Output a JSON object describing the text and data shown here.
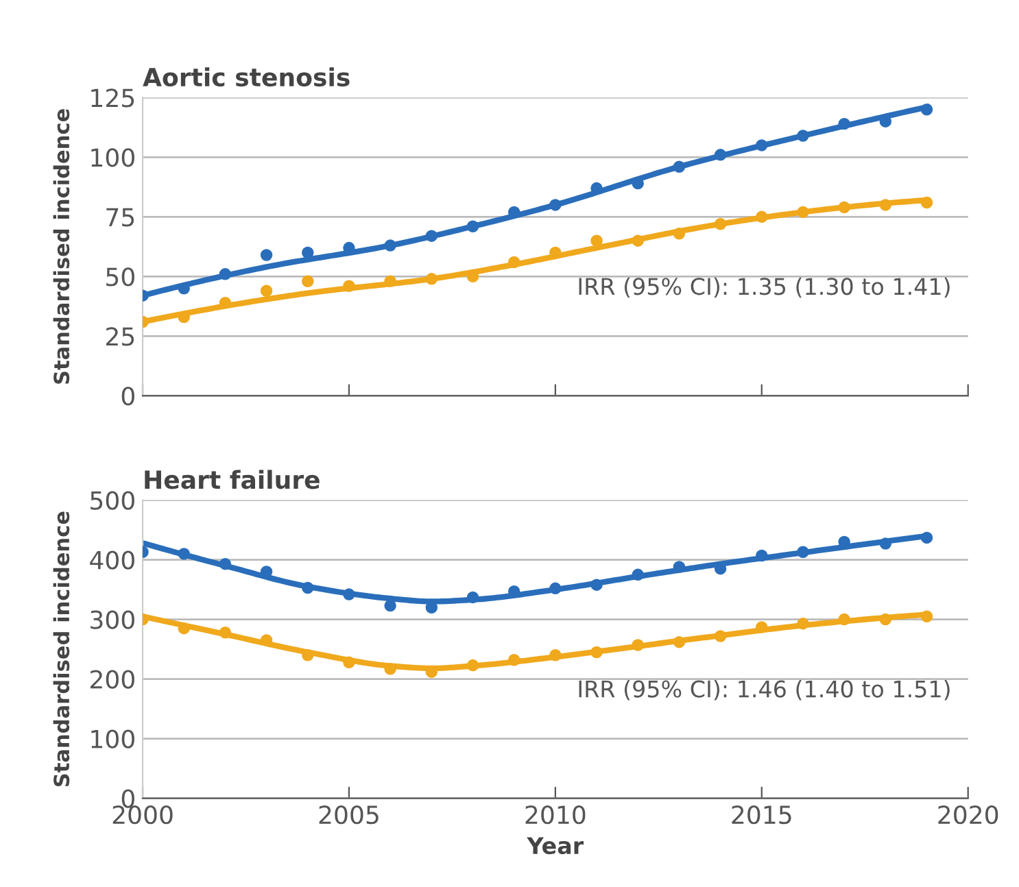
{
  "chart_data": [
    {
      "type": "scatter",
      "title": "Aortic stenosis",
      "ylabel": "Standardised incidence",
      "x": [
        2000,
        2001,
        2002,
        2003,
        2004,
        2005,
        2006,
        2007,
        2008,
        2009,
        2010,
        2011,
        2012,
        2013,
        2014,
        2015,
        2016,
        2017,
        2018,
        2019
      ],
      "series": [
        {
          "color": "#2a6ebb",
          "marker": "circle",
          "values": [
            42,
            45,
            51,
            59,
            60,
            62,
            63,
            67,
            71,
            77,
            80,
            87,
            89,
            96,
            101,
            105,
            109,
            114,
            115,
            120
          ]
        },
        {
          "color": "#f0a81c",
          "marker": "circle",
          "values": [
            31,
            33,
            39,
            44,
            48,
            46,
            48,
            49,
            50,
            56,
            60,
            65,
            65,
            68,
            72,
            75,
            77,
            79,
            80,
            81
          ]
        },
        {
          "type": "line",
          "color": "#2a6ebb",
          "marker": "none",
          "x": [
            2000,
            2003,
            2006,
            2008,
            2010,
            2013,
            2016,
            2019
          ],
          "values": [
            42,
            54,
            63,
            71,
            80,
            96,
            109,
            121
          ]
        },
        {
          "type": "line",
          "color": "#f0a81c",
          "marker": "none",
          "x": [
            2000,
            2004,
            2007,
            2009,
            2011,
            2014,
            2017,
            2019
          ],
          "values": [
            31,
            43,
            49,
            55,
            62,
            72,
            79,
            82
          ]
        }
      ],
      "xlim": [
        2000,
        2020
      ],
      "xticks": [
        2000,
        2005,
        2010,
        2015,
        2020
      ],
      "ylim": [
        0,
        125
      ],
      "yticks": [
        0,
        25,
        50,
        75,
        100,
        125
      ],
      "tick_labels": "y",
      "grid": "y",
      "legend": false,
      "annotations": [
        "IRR (95% CI): 1.35 (1.30 to 1.41)"
      ]
    },
    {
      "type": "scatter",
      "title": "Heart failure",
      "ylabel": "Standardised incidence",
      "xlabel": "Year",
      "x": [
        2000,
        2001,
        2002,
        2003,
        2004,
        2005,
        2006,
        2007,
        2008,
        2009,
        2010,
        2011,
        2012,
        2013,
        2014,
        2015,
        2016,
        2017,
        2018,
        2019
      ],
      "series": [
        {
          "color": "#2a6ebb",
          "marker": "circle",
          "values": [
            413,
            410,
            393,
            380,
            353,
            342,
            323,
            320,
            337,
            347,
            352,
            358,
            375,
            388,
            385,
            407,
            413,
            430,
            427,
            437
          ]
        },
        {
          "color": "#f0a81c",
          "marker": "circle",
          "values": [
            300,
            285,
            278,
            265,
            240,
            228,
            217,
            212,
            223,
            232,
            240,
            245,
            257,
            262,
            272,
            287,
            293,
            300,
            300,
            305
          ]
        },
        {
          "type": "line",
          "color": "#2a6ebb",
          "marker": "none",
          "x": [
            2000,
            2002,
            2004,
            2006,
            2007,
            2008,
            2010,
            2012,
            2014,
            2016,
            2019
          ],
          "values": [
            428,
            390,
            355,
            335,
            330,
            333,
            350,
            372,
            393,
            412,
            440
          ]
        },
        {
          "type": "line",
          "color": "#f0a81c",
          "marker": "none",
          "x": [
            2000,
            2002,
            2004,
            2006,
            2007,
            2008,
            2010,
            2012,
            2014,
            2016,
            2019
          ],
          "values": [
            305,
            275,
            245,
            222,
            218,
            222,
            237,
            255,
            273,
            290,
            308
          ]
        }
      ],
      "xlim": [
        2000,
        2020
      ],
      "xticks": [
        2000,
        2005,
        2010,
        2015,
        2020
      ],
      "ylim": [
        0,
        500
      ],
      "yticks": [
        0,
        100,
        200,
        300,
        400,
        500
      ],
      "grid": "y",
      "legend": false,
      "annotations": [
        "IRR (95% CI): 1.46 (1.40 to 1.51)"
      ]
    }
  ]
}
